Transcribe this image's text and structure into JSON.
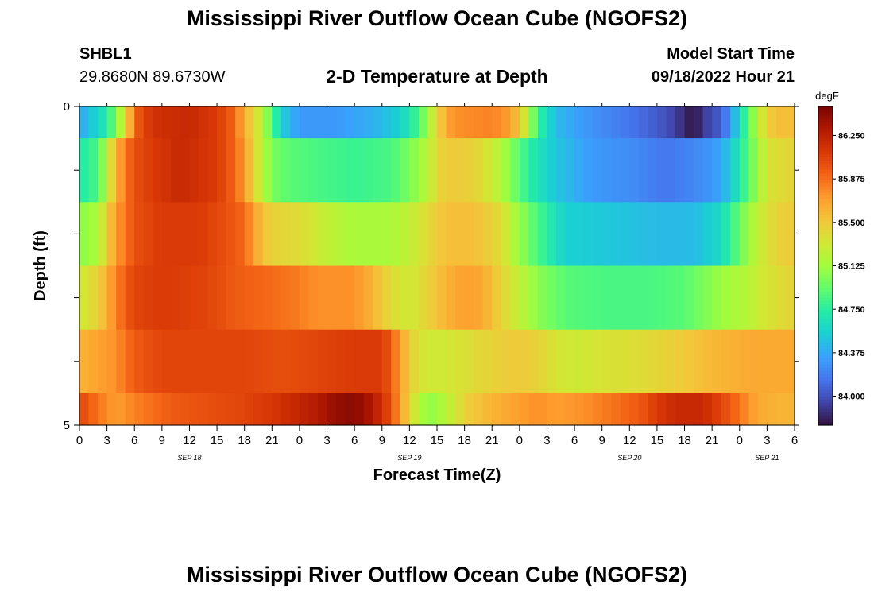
{
  "header": {
    "main_title": "Mississippi River Outflow Ocean Cube (NGOFS2)",
    "station_id": "SHBL1",
    "station_coords": "29.8680N  89.6730W",
    "plot_title": "2-D Temperature at Depth",
    "model_start_label": "Model Start Time",
    "model_start_value": "09/18/2022 Hour 21"
  },
  "footer": {
    "repeat_title": "Mississippi River Outflow Ocean Cube (NGOFS2)"
  },
  "colors": {
    "palette": [
      "#30123b",
      "#4145ab",
      "#4675ed",
      "#39a2fc",
      "#1bcfd4",
      "#24eca6",
      "#61fc6c",
      "#a4fc3b",
      "#d1e834",
      "#f3c63a",
      "#fe9b2d",
      "#f36315",
      "#d93806",
      "#b11901",
      "#7a0402"
    ]
  },
  "chart_data": {
    "type": "heatmap",
    "xlabel": "Forecast Time(Z)",
    "ylabel": "Depth (ft)",
    "colorbar_unit": "degF",
    "x_range_hours": [
      0,
      78
    ],
    "x_ticks": [
      "0",
      "3",
      "6",
      "9",
      "12",
      "15",
      "18",
      "21",
      "0",
      "3",
      "6",
      "9",
      "12",
      "15",
      "18",
      "21",
      "0",
      "3",
      "6",
      "9",
      "12",
      "15",
      "18",
      "21",
      "0",
      "3",
      "6"
    ],
    "date_labels": [
      {
        "label": "SEP 18",
        "at_hour": 12
      },
      {
        "label": "SEP 19",
        "at_hour": 36
      },
      {
        "label": "SEP 20",
        "at_hour": 60
      },
      {
        "label": "SEP 21",
        "at_hour": 75
      }
    ],
    "y_ticks": [
      "0",
      "5"
    ],
    "y_range": [
      0,
      5
    ],
    "depth_levels": 5,
    "colorbar": {
      "min": 83.75,
      "max": 86.5,
      "tick_labels": [
        "86.250",
        "85.875",
        "85.500",
        "85.125",
        "84.750",
        "84.375",
        "84.000"
      ],
      "tick_values": [
        86.25,
        85.875,
        85.5,
        85.125,
        84.75,
        84.375,
        84.0
      ]
    },
    "time_step_hours": 1,
    "rows": [
      {
        "depth_band": "0",
        "keyframes": [
          [
            0,
            84.35
          ],
          [
            3,
            84.7
          ],
          [
            5,
            85.35
          ],
          [
            6,
            85.9
          ],
          [
            7,
            86.05
          ],
          [
            8,
            86.15
          ],
          [
            12,
            86.2
          ],
          [
            15,
            86.1
          ],
          [
            17,
            85.9
          ],
          [
            18,
            85.6
          ],
          [
            19,
            85.45
          ],
          [
            20,
            85.2
          ],
          [
            21,
            84.9
          ],
          [
            22,
            84.55
          ],
          [
            24,
            84.3
          ],
          [
            28,
            84.3
          ],
          [
            32,
            84.4
          ],
          [
            35,
            84.55
          ],
          [
            37,
            84.85
          ],
          [
            38,
            85.1
          ],
          [
            39,
            85.4
          ],
          [
            40,
            85.65
          ],
          [
            41,
            85.75
          ],
          [
            45,
            85.8
          ],
          [
            47,
            85.7
          ],
          [
            48,
            85.5
          ],
          [
            49,
            85.2
          ],
          [
            50,
            84.8
          ],
          [
            52,
            84.45
          ],
          [
            55,
            84.3
          ],
          [
            60,
            84.15
          ],
          [
            64,
            84.0
          ],
          [
            66,
            83.85
          ],
          [
            67,
            83.75
          ],
          [
            68,
            83.9
          ],
          [
            70,
            84.05
          ],
          [
            71,
            84.3
          ],
          [
            72,
            84.6
          ],
          [
            73,
            84.9
          ],
          [
            74,
            85.2
          ],
          [
            75,
            85.45
          ],
          [
            76,
            85.55
          ],
          [
            78,
            85.55
          ]
        ]
      },
      {
        "depth_band": "1",
        "keyframes": [
          [
            0,
            84.7
          ],
          [
            2,
            84.85
          ],
          [
            3,
            85.2
          ],
          [
            4,
            85.6
          ],
          [
            5,
            85.85
          ],
          [
            6,
            86.0
          ],
          [
            8,
            86.1
          ],
          [
            11,
            86.2
          ],
          [
            15,
            86.1
          ],
          [
            17,
            85.9
          ],
          [
            18,
            85.7
          ],
          [
            19,
            85.45
          ],
          [
            20,
            85.2
          ],
          [
            21,
            85.0
          ],
          [
            23,
            84.9
          ],
          [
            26,
            84.85
          ],
          [
            30,
            84.8
          ],
          [
            34,
            84.85
          ],
          [
            36,
            85.0
          ],
          [
            38,
            85.2
          ],
          [
            39,
            85.4
          ],
          [
            40,
            85.5
          ],
          [
            43,
            85.45
          ],
          [
            45,
            85.3
          ],
          [
            47,
            85.05
          ],
          [
            49,
            84.75
          ],
          [
            52,
            84.5
          ],
          [
            56,
            84.3
          ],
          [
            60,
            84.25
          ],
          [
            64,
            84.15
          ],
          [
            66,
            84.2
          ],
          [
            68,
            84.25
          ],
          [
            70,
            84.35
          ],
          [
            72,
            84.7
          ],
          [
            74,
            85.1
          ],
          [
            75,
            85.35
          ],
          [
            78,
            85.45
          ]
        ]
      },
      {
        "depth_band": "2",
        "keyframes": [
          [
            0,
            85.05
          ],
          [
            2,
            85.15
          ],
          [
            3,
            85.45
          ],
          [
            4,
            85.7
          ],
          [
            5,
            85.85
          ],
          [
            6,
            86.0
          ],
          [
            9,
            86.1
          ],
          [
            13,
            86.1
          ],
          [
            16,
            86.0
          ],
          [
            18,
            85.9
          ],
          [
            19,
            85.7
          ],
          [
            20,
            85.55
          ],
          [
            21,
            85.45
          ],
          [
            24,
            85.4
          ],
          [
            27,
            85.25
          ],
          [
            30,
            85.15
          ],
          [
            34,
            85.15
          ],
          [
            36,
            85.25
          ],
          [
            38,
            85.4
          ],
          [
            40,
            85.55
          ],
          [
            43,
            85.55
          ],
          [
            46,
            85.4
          ],
          [
            48,
            85.1
          ],
          [
            50,
            84.85
          ],
          [
            53,
            84.55
          ],
          [
            58,
            84.5
          ],
          [
            63,
            84.45
          ],
          [
            67,
            84.45
          ],
          [
            70,
            84.6
          ],
          [
            72,
            84.95
          ],
          [
            74,
            85.25
          ],
          [
            76,
            85.45
          ],
          [
            78,
            85.5
          ]
        ]
      },
      {
        "depth_band": "3",
        "keyframes": [
          [
            0,
            85.3
          ],
          [
            2,
            85.45
          ],
          [
            4,
            85.8
          ],
          [
            5,
            85.95
          ],
          [
            6,
            86.05
          ],
          [
            9,
            86.1
          ],
          [
            14,
            86.05
          ],
          [
            17,
            85.95
          ],
          [
            20,
            85.9
          ],
          [
            23,
            85.85
          ],
          [
            26,
            85.75
          ],
          [
            30,
            85.75
          ],
          [
            32,
            85.6
          ],
          [
            34,
            85.4
          ],
          [
            36,
            85.3
          ],
          [
            38,
            85.45
          ],
          [
            40,
            85.6
          ],
          [
            42,
            85.7
          ],
          [
            44,
            85.65
          ],
          [
            46,
            85.45
          ],
          [
            48,
            85.25
          ],
          [
            50,
            85.05
          ],
          [
            53,
            84.9
          ],
          [
            57,
            84.85
          ],
          [
            62,
            84.85
          ],
          [
            66,
            84.9
          ],
          [
            68,
            85.0
          ],
          [
            70,
            85.1
          ],
          [
            73,
            85.2
          ],
          [
            75,
            85.35
          ],
          [
            78,
            85.45
          ]
        ]
      },
      {
        "depth_band": "4",
        "keyframes": [
          [
            0,
            85.6
          ],
          [
            4,
            85.75
          ],
          [
            6,
            85.95
          ],
          [
            9,
            86.05
          ],
          [
            14,
            86.05
          ],
          [
            18,
            86.05
          ],
          [
            22,
            86.0
          ],
          [
            26,
            86.05
          ],
          [
            30,
            86.1
          ],
          [
            33,
            86.1
          ],
          [
            34,
            85.95
          ],
          [
            35,
            85.7
          ],
          [
            36,
            85.5
          ],
          [
            37,
            85.35
          ],
          [
            39,
            85.3
          ],
          [
            41,
            85.35
          ],
          [
            43,
            85.4
          ],
          [
            45,
            85.45
          ],
          [
            48,
            85.5
          ],
          [
            50,
            85.45
          ],
          [
            52,
            85.35
          ],
          [
            54,
            85.3
          ],
          [
            57,
            85.35
          ],
          [
            62,
            85.4
          ],
          [
            66,
            85.5
          ],
          [
            70,
            85.6
          ],
          [
            74,
            85.65
          ],
          [
            78,
            85.65
          ]
        ]
      },
      {
        "depth_band": "5",
        "keyframes": [
          [
            0,
            86.05
          ],
          [
            2,
            85.85
          ],
          [
            4,
            85.7
          ],
          [
            6,
            85.8
          ],
          [
            10,
            85.95
          ],
          [
            14,
            86.0
          ],
          [
            18,
            86.05
          ],
          [
            22,
            86.15
          ],
          [
            26,
            86.3
          ],
          [
            28,
            86.4
          ],
          [
            30,
            86.45
          ],
          [
            32,
            86.3
          ],
          [
            33,
            86.15
          ],
          [
            34,
            86.0
          ],
          [
            35,
            85.7
          ],
          [
            36,
            85.45
          ],
          [
            37,
            85.2
          ],
          [
            38,
            85.05
          ],
          [
            40,
            85.2
          ],
          [
            42,
            85.45
          ],
          [
            45,
            85.6
          ],
          [
            48,
            85.7
          ],
          [
            50,
            85.75
          ],
          [
            52,
            85.7
          ],
          [
            55,
            85.75
          ],
          [
            58,
            85.85
          ],
          [
            61,
            85.95
          ],
          [
            63,
            86.1
          ],
          [
            65,
            86.2
          ],
          [
            68,
            86.2
          ],
          [
            70,
            86.05
          ],
          [
            72,
            85.85
          ],
          [
            74,
            85.65
          ],
          [
            76,
            85.6
          ],
          [
            78,
            85.6
          ]
        ]
      }
    ]
  }
}
